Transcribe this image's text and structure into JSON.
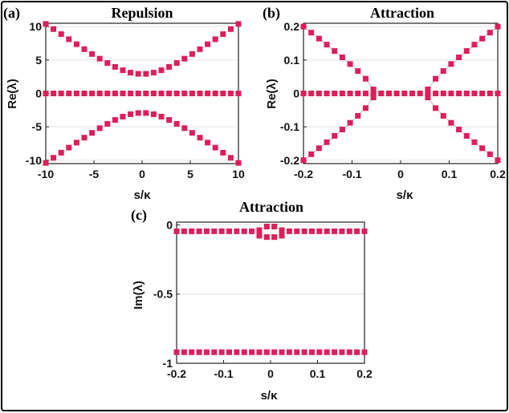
{
  "chart_data": [
    {
      "id": "a",
      "type": "scatter",
      "panel_label": "(a)",
      "title": "Repulsion",
      "xlabel": "s/κ",
      "ylabel": "Re(λ)",
      "xlim": [
        -10,
        10
      ],
      "ylim": [
        -10.5,
        10.5
      ],
      "xticks": [
        -10,
        -5,
        0,
        5,
        10
      ],
      "xtick_labels": [
        "-10",
        "-5",
        "0",
        "5",
        "10"
      ],
      "yticks": [
        -10,
        -5,
        0,
        5,
        10
      ],
      "ytick_labels": [
        "-10",
        "-5",
        "0",
        "5",
        "10"
      ],
      "grid": "horizontal",
      "marker_color": "#dc1f5a",
      "series": [
        {
          "x": [
            -10,
            -9.2,
            -8.4,
            -7.6,
            -6.8,
            -6,
            -5.2,
            -4.4,
            -3.6,
            -2.8,
            -2,
            -1.2,
            -0.4,
            0.4,
            1.2,
            2,
            2.8,
            3.6,
            4.4,
            5.2,
            6,
            6.8,
            7.6,
            8.4,
            9.2,
            10
          ],
          "y": [
            10.4,
            9.63,
            8.87,
            8.11,
            7.36,
            6.62,
            5.9,
            5.2,
            4.55,
            3.97,
            3.47,
            3.11,
            2.93,
            2.93,
            3.11,
            3.47,
            3.97,
            4.55,
            5.2,
            5.9,
            6.62,
            7.36,
            8.11,
            8.87,
            9.63,
            10.4
          ]
        },
        {
          "x": [
            -10,
            -9.2,
            -8.4,
            -7.6,
            -6.8,
            -6,
            -5.2,
            -4.4,
            -3.6,
            -2.8,
            -2,
            -1.2,
            -0.4,
            0.4,
            1.2,
            2,
            2.8,
            3.6,
            4.4,
            5.2,
            6,
            6.8,
            7.6,
            8.4,
            9.2,
            10
          ],
          "y": [
            0,
            0,
            0,
            0,
            0,
            0,
            0,
            0,
            0,
            0,
            0,
            0,
            0,
            0,
            0,
            0,
            0,
            0,
            0,
            0,
            0,
            0,
            0,
            0,
            0,
            0
          ]
        },
        {
          "x": [
            -10,
            -9.2,
            -8.4,
            -7.6,
            -6.8,
            -6,
            -5.2,
            -4.4,
            -3.6,
            -2.8,
            -2,
            -1.2,
            -0.4,
            0.4,
            1.2,
            2,
            2.8,
            3.6,
            4.4,
            5.2,
            6,
            6.8,
            7.6,
            8.4,
            9.2,
            10
          ],
          "y": [
            -10.4,
            -9.63,
            -8.87,
            -8.11,
            -7.36,
            -6.62,
            -5.9,
            -5.2,
            -4.55,
            -3.97,
            -3.47,
            -3.11,
            -2.93,
            -2.93,
            -3.11,
            -3.47,
            -3.97,
            -4.55,
            -5.2,
            -5.9,
            -6.62,
            -7.36,
            -8.11,
            -8.87,
            -9.63,
            -10.4
          ]
        }
      ]
    },
    {
      "id": "b",
      "type": "scatter",
      "panel_label": "(b)",
      "title": "Attraction",
      "xlabel": "s/κ",
      "ylabel": "Re(λ)",
      "xlim": [
        -0.2,
        0.2
      ],
      "ylim": [
        -0.21,
        0.21
      ],
      "xticks": [
        -0.2,
        -0.1,
        0,
        0.1,
        0.2
      ],
      "xtick_labels": [
        "-0.2",
        "-0.1",
        "0",
        "0.1",
        "0.2"
      ],
      "yticks": [
        -0.2,
        -0.1,
        0,
        0.1,
        0.2
      ],
      "ytick_labels": [
        "-0.2",
        "-0.1",
        "0",
        "0.1",
        "0.2"
      ],
      "grid": "horizontal",
      "marker_color": "#dc1f5a",
      "series": [
        {
          "x": [
            -0.2,
            -0.184,
            -0.168,
            -0.152,
            -0.136,
            -0.12,
            -0.104,
            -0.088,
            -0.072,
            -0.056,
            0.056,
            0.072,
            0.088,
            0.104,
            0.12,
            0.136,
            0.152,
            0.168,
            0.184,
            0.2
          ],
          "y": [
            0.2,
            0.182,
            0.164,
            0.146,
            0.127,
            0.108,
            0.088,
            0.067,
            0.044,
            0.012,
            0.012,
            0.044,
            0.067,
            0.088,
            0.108,
            0.127,
            0.146,
            0.164,
            0.182,
            0.2
          ]
        },
        {
          "x": [
            -0.2,
            -0.184,
            -0.168,
            -0.152,
            -0.136,
            -0.12,
            -0.104,
            -0.088,
            -0.072,
            -0.056,
            -0.04,
            -0.024,
            -0.008,
            0.008,
            0.024,
            0.04,
            0.056,
            0.072,
            0.088,
            0.104,
            0.12,
            0.136,
            0.152,
            0.168,
            0.184,
            0.2
          ],
          "y": [
            0,
            0,
            0,
            0,
            0,
            0,
            0,
            0,
            0,
            0,
            0,
            0,
            0,
            0,
            0,
            0,
            0,
            0,
            0,
            0,
            0,
            0,
            0,
            0,
            0,
            0
          ]
        },
        {
          "x": [
            -0.2,
            -0.184,
            -0.168,
            -0.152,
            -0.136,
            -0.12,
            -0.104,
            -0.088,
            -0.072,
            -0.056,
            0.056,
            0.072,
            0.088,
            0.104,
            0.12,
            0.136,
            0.152,
            0.168,
            0.184,
            0.2
          ],
          "y": [
            -0.2,
            -0.182,
            -0.164,
            -0.146,
            -0.127,
            -0.108,
            -0.088,
            -0.067,
            -0.044,
            -0.012,
            -0.012,
            -0.044,
            -0.067,
            -0.088,
            -0.108,
            -0.127,
            -0.146,
            -0.164,
            -0.182,
            -0.2
          ]
        }
      ]
    },
    {
      "id": "c",
      "type": "scatter",
      "panel_label": "(c)",
      "title": "Attraction",
      "xlabel": "s/κ",
      "ylabel": "Im(λ)",
      "xlim": [
        -0.2,
        0.2
      ],
      "ylim": [
        -1,
        0.02
      ],
      "xticks": [
        -0.2,
        -0.1,
        0,
        0.1,
        0.2
      ],
      "xtick_labels": [
        "-0.2",
        "-0.1",
        "0",
        "0.1",
        "0.2"
      ],
      "yticks": [
        -1,
        -0.5,
        0
      ],
      "ytick_labels": [
        "-1",
        "-0.5",
        "0"
      ],
      "grid": "horizontal",
      "marker_color": "#dc1f5a",
      "series": [
        {
          "x": [
            -0.2,
            -0.184,
            -0.168,
            -0.152,
            -0.136,
            -0.12,
            -0.104,
            -0.088,
            -0.072,
            -0.056,
            -0.04,
            -0.024,
            -0.008,
            0.008,
            0.024,
            0.04,
            0.056,
            0.072,
            0.088,
            0.104,
            0.12,
            0.136,
            0.152,
            0.168,
            0.184,
            0.2
          ],
          "y": [
            -0.046,
            -0.046,
            -0.046,
            -0.046,
            -0.046,
            -0.046,
            -0.046,
            -0.046,
            -0.046,
            -0.046,
            -0.046,
            -0.038,
            -0.012,
            -0.012,
            -0.038,
            -0.046,
            -0.046,
            -0.046,
            -0.046,
            -0.046,
            -0.046,
            -0.046,
            -0.046,
            -0.046,
            -0.046,
            -0.046
          ]
        },
        {
          "x": [
            -0.024,
            -0.008,
            0.008,
            0.024
          ],
          "y": [
            -0.078,
            -0.088,
            -0.088,
            -0.078
          ]
        },
        {
          "x": [
            -0.2,
            -0.184,
            -0.168,
            -0.152,
            -0.136,
            -0.12,
            -0.104,
            -0.088,
            -0.072,
            -0.056,
            -0.04,
            -0.024,
            -0.008,
            0.008,
            0.024,
            0.04,
            0.056,
            0.072,
            0.088,
            0.104,
            0.12,
            0.136,
            0.152,
            0.168,
            0.184,
            0.2
          ],
          "y": [
            -0.92,
            -0.92,
            -0.92,
            -0.92,
            -0.92,
            -0.92,
            -0.92,
            -0.92,
            -0.92,
            -0.92,
            -0.92,
            -0.92,
            -0.92,
            -0.92,
            -0.92,
            -0.92,
            -0.92,
            -0.92,
            -0.92,
            -0.92,
            -0.92,
            -0.92,
            -0.92,
            -0.92,
            -0.92,
            -0.92
          ]
        }
      ]
    }
  ]
}
